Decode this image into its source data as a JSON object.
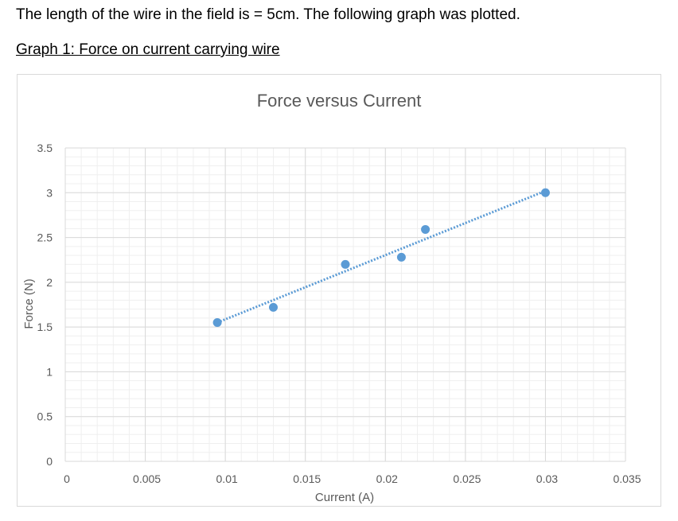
{
  "intro_text": "The length of the wire in the field is = 5cm. The following graph was plotted.",
  "graph_caption": "Graph 1: Force on current carrying wire",
  "chart_data": {
    "type": "scatter",
    "title": "Force versus Current",
    "xlabel": "Current (A)",
    "ylabel": "Force (N)",
    "xlim": [
      0,
      0.035
    ],
    "ylim": [
      0,
      3.5
    ],
    "x_ticks": [
      "0",
      "0.005",
      "0.01",
      "0.015",
      "0.02",
      "0.025",
      "0.03",
      "0.035"
    ],
    "y_ticks": [
      "0",
      "0.5",
      "1",
      "1.5",
      "2",
      "2.5",
      "3",
      "3.5"
    ],
    "grid": true,
    "minor_grid": true,
    "series": [
      {
        "marker_color": "#5b9bd5",
        "points": [
          {
            "x": 0.0095,
            "y": 1.55
          },
          {
            "x": 0.013,
            "y": 1.72
          },
          {
            "x": 0.0175,
            "y": 2.2
          },
          {
            "x": 0.021,
            "y": 2.28
          },
          {
            "x": 0.0225,
            "y": 2.59
          },
          {
            "x": 0.03,
            "y": 3.0
          }
        ]
      }
    ],
    "trendline": {
      "style": "dotted",
      "color": "#5b9bd5",
      "from": {
        "x": 0.0095,
        "y": 1.55
      },
      "to": {
        "x": 0.03,
        "y": 3.02
      }
    }
  }
}
